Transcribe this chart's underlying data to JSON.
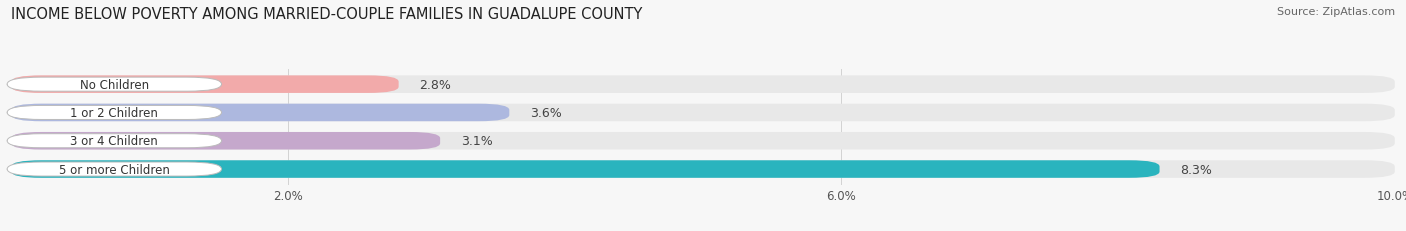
{
  "title": "INCOME BELOW POVERTY AMONG MARRIED-COUPLE FAMILIES IN GUADALUPE COUNTY",
  "source": "Source: ZipAtlas.com",
  "categories": [
    "No Children",
    "1 or 2 Children",
    "3 or 4 Children",
    "5 or more Children"
  ],
  "values": [
    2.8,
    3.6,
    3.1,
    8.3
  ],
  "bar_colors": [
    "#f2aaaa",
    "#adb8df",
    "#c5a8cc",
    "#2ab4be"
  ],
  "bar_bg_color": "#e8e8e8",
  "xlim_min": 0.0,
  "xlim_max": 10.0,
  "xticks": [
    2.0,
    6.0,
    10.0
  ],
  "xtick_labels": [
    "2.0%",
    "6.0%",
    "10.0%"
  ],
  "title_fontsize": 10.5,
  "source_fontsize": 8,
  "bar_label_fontsize": 9,
  "category_fontsize": 8.5,
  "bar_height": 0.62,
  "bar_gap": 1.0,
  "background_color": "#f7f7f7"
}
